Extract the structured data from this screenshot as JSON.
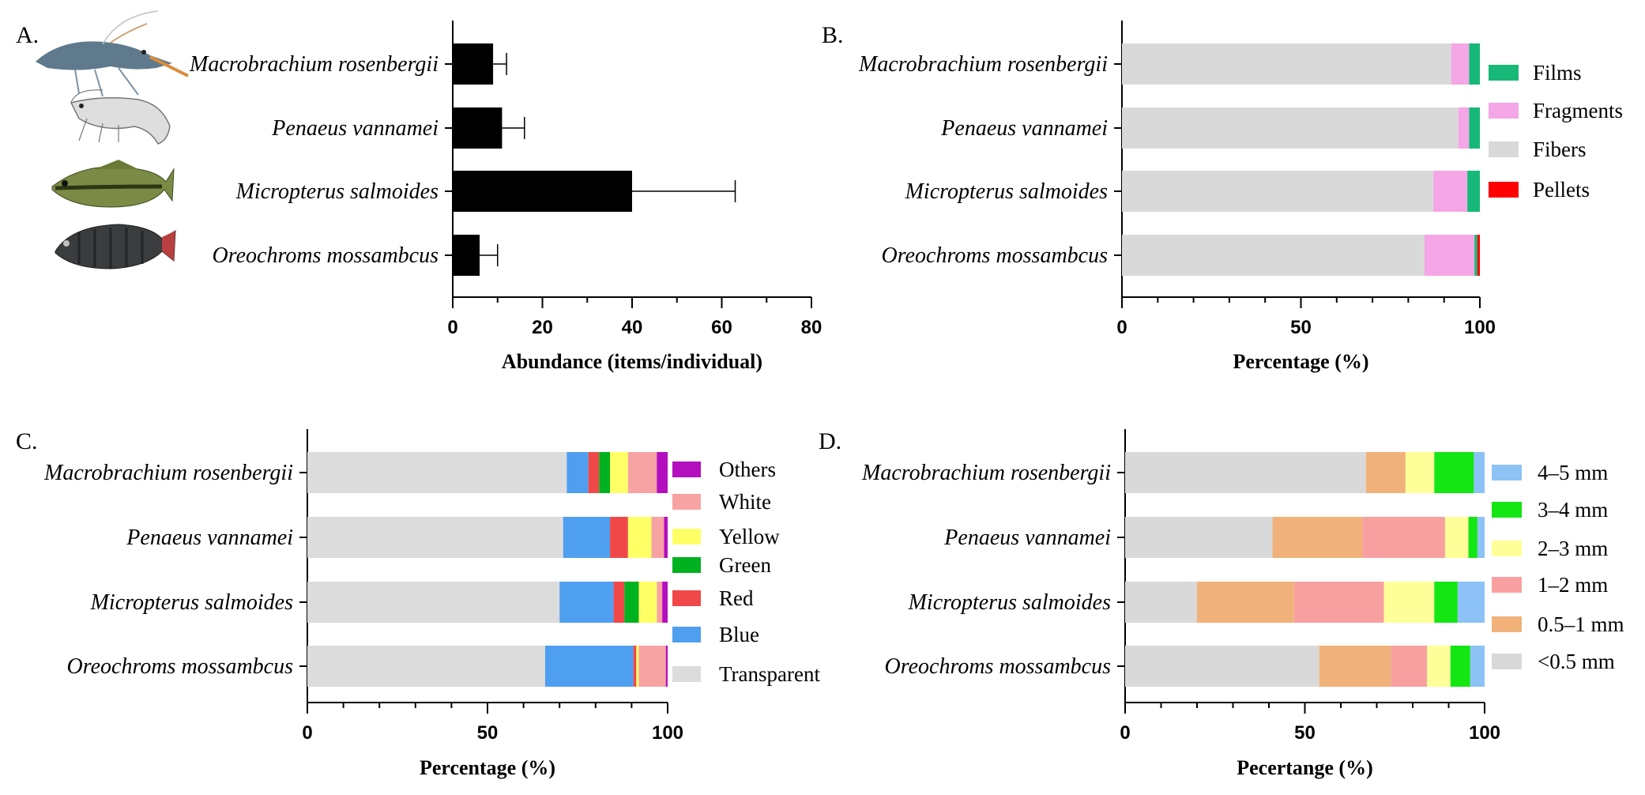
{
  "chart_data": [
    {
      "id": "A",
      "panel_label": "A.",
      "type": "bar",
      "orientation": "horizontal",
      "categories": [
        "Macrobrachium rosenbergii",
        "Penaeus vannamei",
        "Micropterus salmoides",
        "Oreochroms mossambcus"
      ],
      "values": [
        9,
        11,
        40,
        6
      ],
      "errors": [
        3,
        5,
        23,
        4
      ],
      "xlabel": "Abundance (items/individual)",
      "xlim": [
        0,
        80
      ],
      "xticks": [
        "0",
        "20",
        "40",
        "60",
        "80"
      ],
      "bar_color": "#000000",
      "icons": [
        "shrimp-icon",
        "shrimp-outline-icon",
        "bass-fish-icon",
        "tilapia-fish-icon"
      ]
    },
    {
      "id": "B",
      "panel_label": "B.",
      "type": "bar",
      "stacked": true,
      "orientation": "horizontal",
      "categories": [
        "Macrobrachium rosenbergii",
        "Penaeus vannamei",
        "Micropterus salmoides",
        "Oreochroms mossambcus"
      ],
      "series": [
        {
          "name": "Fibers",
          "color": "#d9d9d9",
          "values": [
            92,
            94,
            87,
            84.5
          ]
        },
        {
          "name": "Fragments",
          "color": "#f4a6e6",
          "values": [
            5,
            3,
            9.5,
            14
          ]
        },
        {
          "name": "Films",
          "color": "#17b978",
          "values": [
            3,
            3,
            3.5,
            0.8
          ]
        },
        {
          "name": "Pellets",
          "color": "#ff0000",
          "values": [
            0,
            0,
            0,
            0.7
          ]
        }
      ],
      "legend_order": [
        "Films",
        "Fragments",
        "Fibers",
        "Pellets"
      ],
      "xlabel": "Percentage (%)",
      "xlim": [
        0,
        100
      ],
      "xticks": [
        "0",
        "50",
        "100"
      ]
    },
    {
      "id": "C",
      "panel_label": "C.",
      "type": "bar",
      "stacked": true,
      "orientation": "horizontal",
      "categories": [
        "Macrobrachium rosenbergii",
        "Penaeus vannamei",
        "Micropterus salmoides",
        "Oreochroms mossambcus"
      ],
      "series": [
        {
          "name": "Transparent",
          "color": "#dcdcdc",
          "values": [
            72,
            71,
            70,
            66
          ]
        },
        {
          "name": "Blue",
          "color": "#4f9ff0",
          "values": [
            6,
            13,
            15,
            24.5
          ]
        },
        {
          "name": "Red",
          "color": "#f04848",
          "values": [
            3,
            5,
            3,
            0.8
          ]
        },
        {
          "name": "Green",
          "color": "#00b21f",
          "values": [
            3,
            0,
            4,
            0
          ]
        },
        {
          "name": "Yellow",
          "color": "#ffff66",
          "values": [
            5,
            6.5,
            5,
            0.7
          ]
        },
        {
          "name": "White",
          "color": "#f7a3a3",
          "values": [
            8,
            3.5,
            1.5,
            7.5
          ]
        },
        {
          "name": "Others",
          "color": "#b40fbf",
          "values": [
            3,
            1,
            1.5,
            0.5
          ]
        }
      ],
      "legend_order": [
        "Others",
        "White",
        "Yellow",
        "Green",
        "Red",
        "Blue",
        "Transparent"
      ],
      "xlabel": "Percentage (%)",
      "xlim": [
        0,
        100
      ],
      "xticks": [
        "0",
        "50",
        "100"
      ]
    },
    {
      "id": "D",
      "panel_label": "D.",
      "type": "bar",
      "stacked": true,
      "orientation": "horizontal",
      "categories": [
        "Macrobrachium rosenbergii",
        "Penaeus vannamei",
        "Micropterus salmoides",
        "Oreochroms mossambcus"
      ],
      "series": [
        {
          "name": "<0.5 mm",
          "color": "#d9d9d9",
          "values": [
            67,
            41,
            20,
            54
          ]
        },
        {
          "name": "0.5–1 mm",
          "color": "#f0b27a",
          "values": [
            11,
            25,
            27,
            20
          ]
        },
        {
          "name": "1–2 mm",
          "color": "#f8a0a0",
          "values": [
            0,
            23,
            25,
            10
          ]
        },
        {
          "name": "2–3 mm",
          "color": "#ffff99",
          "values": [
            8,
            6.5,
            14,
            6.5
          ]
        },
        {
          "name": "3–4 mm",
          "color": "#14e614",
          "values": [
            11,
            2.5,
            6.5,
            5.5
          ]
        },
        {
          "name": "4–5 mm",
          "color": "#8cc2f6",
          "values": [
            3,
            2,
            7.5,
            4
          ]
        }
      ],
      "legend_order": [
        "4–5 mm",
        "3–4 mm",
        "2–3 mm",
        "1–2 mm",
        "0.5–1 mm",
        "<0.5 mm"
      ],
      "xlabel": "Pecertange (%)",
      "xlim": [
        0,
        100
      ],
      "xticks": [
        "0",
        "50",
        "100"
      ]
    }
  ]
}
